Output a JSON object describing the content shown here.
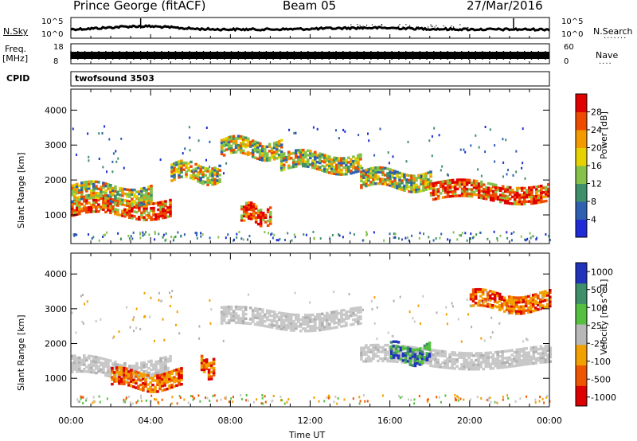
{
  "header": {
    "station": "Prince George (fitACF)",
    "beam": "Beam 05",
    "date": "27/Mar/2016"
  },
  "top_panels": {
    "nsky_label": "N.Sky",
    "nsky_top_tick": "10^5",
    "nsky_bottom_tick": "10^0",
    "nsearch_label": "N.Search",
    "nsearch_top_tick": "10^5",
    "nsearch_bottom_tick": "10^0",
    "freq_label_1": "Freq.",
    "freq_label_2": "[MHz]",
    "freq_top_tick": "18",
    "freq_bottom_tick": "8",
    "nave_label": "Nave",
    "nave_top_tick": "60",
    "nave_bottom_tick": "0",
    "cpid_label": "CPID",
    "cpid_value": "twofsound 3503"
  },
  "chart_data": [
    {
      "type": "heatmap",
      "title": "",
      "xlabel": "Time UT",
      "ylabel": "Slant Range [km]",
      "x_ticks": [
        "00:00",
        "04:00",
        "08:00",
        "12:00",
        "16:00",
        "20:00",
        "00:00"
      ],
      "xlim_hours": [
        0,
        24
      ],
      "y_ticks": [
        1000,
        2000,
        3000,
        4000
      ],
      "ylim": [
        180,
        4600
      ],
      "colorbar_label": "Power [dB]",
      "colorbar_ticks": [
        "4",
        "8",
        "12",
        "16",
        "20",
        "24",
        "28"
      ],
      "colorbar_colors": [
        "#1f2bd6",
        "#2f5fb0",
        "#3f8f6a",
        "#84c24a",
        "#e6d200",
        "#f29a00",
        "#ee4b00",
        "#e00000"
      ],
      "echo_bands": [
        {
          "hour_start": 0.0,
          "hour_end": 5.0,
          "range_km": 1200,
          "level": "high"
        },
        {
          "hour_start": 0.0,
          "hour_end": 4.0,
          "range_km": 1600,
          "level": "mid"
        },
        {
          "hour_start": 5.0,
          "hour_end": 7.5,
          "range_km": 2200,
          "level": "mid"
        },
        {
          "hour_start": 7.5,
          "hour_end": 10.5,
          "range_km": 2900,
          "level": "mid"
        },
        {
          "hour_start": 10.5,
          "hour_end": 14.5,
          "range_km": 2500,
          "level": "mid"
        },
        {
          "hour_start": 14.5,
          "hour_end": 18.0,
          "range_km": 2000,
          "level": "mid"
        },
        {
          "hour_start": 18.0,
          "hour_end": 24.0,
          "range_km": 1650,
          "level": "high"
        },
        {
          "hour_start": 8.5,
          "hour_end": 10.0,
          "range_km": 1000,
          "level": "high"
        }
      ]
    },
    {
      "type": "heatmap",
      "title": "",
      "xlabel": "Time UT",
      "ylabel": "Slant Range [km]",
      "x_ticks": [
        "00:00",
        "04:00",
        "08:00",
        "12:00",
        "16:00",
        "20:00",
        "00:00"
      ],
      "xlim_hours": [
        0,
        24
      ],
      "y_ticks": [
        1000,
        2000,
        3000,
        4000
      ],
      "ylim": [
        180,
        4600
      ],
      "colorbar_label": "Velocity [m s^-1]",
      "colorbar_ticks": [
        "1000",
        "500",
        "100",
        "25",
        "-25",
        "-100",
        "-500",
        "-1000"
      ],
      "colorbar_colors": [
        "#2233bb",
        "#3f8f6a",
        "#55c040",
        "#b8b8b8",
        "#f2a000",
        "#ee5500",
        "#dd0000"
      ],
      "echo_bands": [
        {
          "hour_start": 0.0,
          "hour_end": 5.0,
          "range_km": 1300,
          "level": "ground"
        },
        {
          "hour_start": 2.0,
          "hour_end": 5.5,
          "range_km": 950,
          "level": "negative"
        },
        {
          "hour_start": 6.5,
          "hour_end": 7.2,
          "range_km": 1300,
          "level": "strong-negative"
        },
        {
          "hour_start": 7.5,
          "hour_end": 14.5,
          "range_km": 2700,
          "level": "ground"
        },
        {
          "hour_start": 14.5,
          "hour_end": 24.0,
          "range_km": 1600,
          "level": "ground"
        },
        {
          "hour_start": 20.0,
          "hour_end": 24.0,
          "range_km": 3200,
          "level": "negative"
        },
        {
          "hour_start": 16.0,
          "hour_end": 18.0,
          "range_km": 1700,
          "level": "positive"
        }
      ]
    }
  ]
}
